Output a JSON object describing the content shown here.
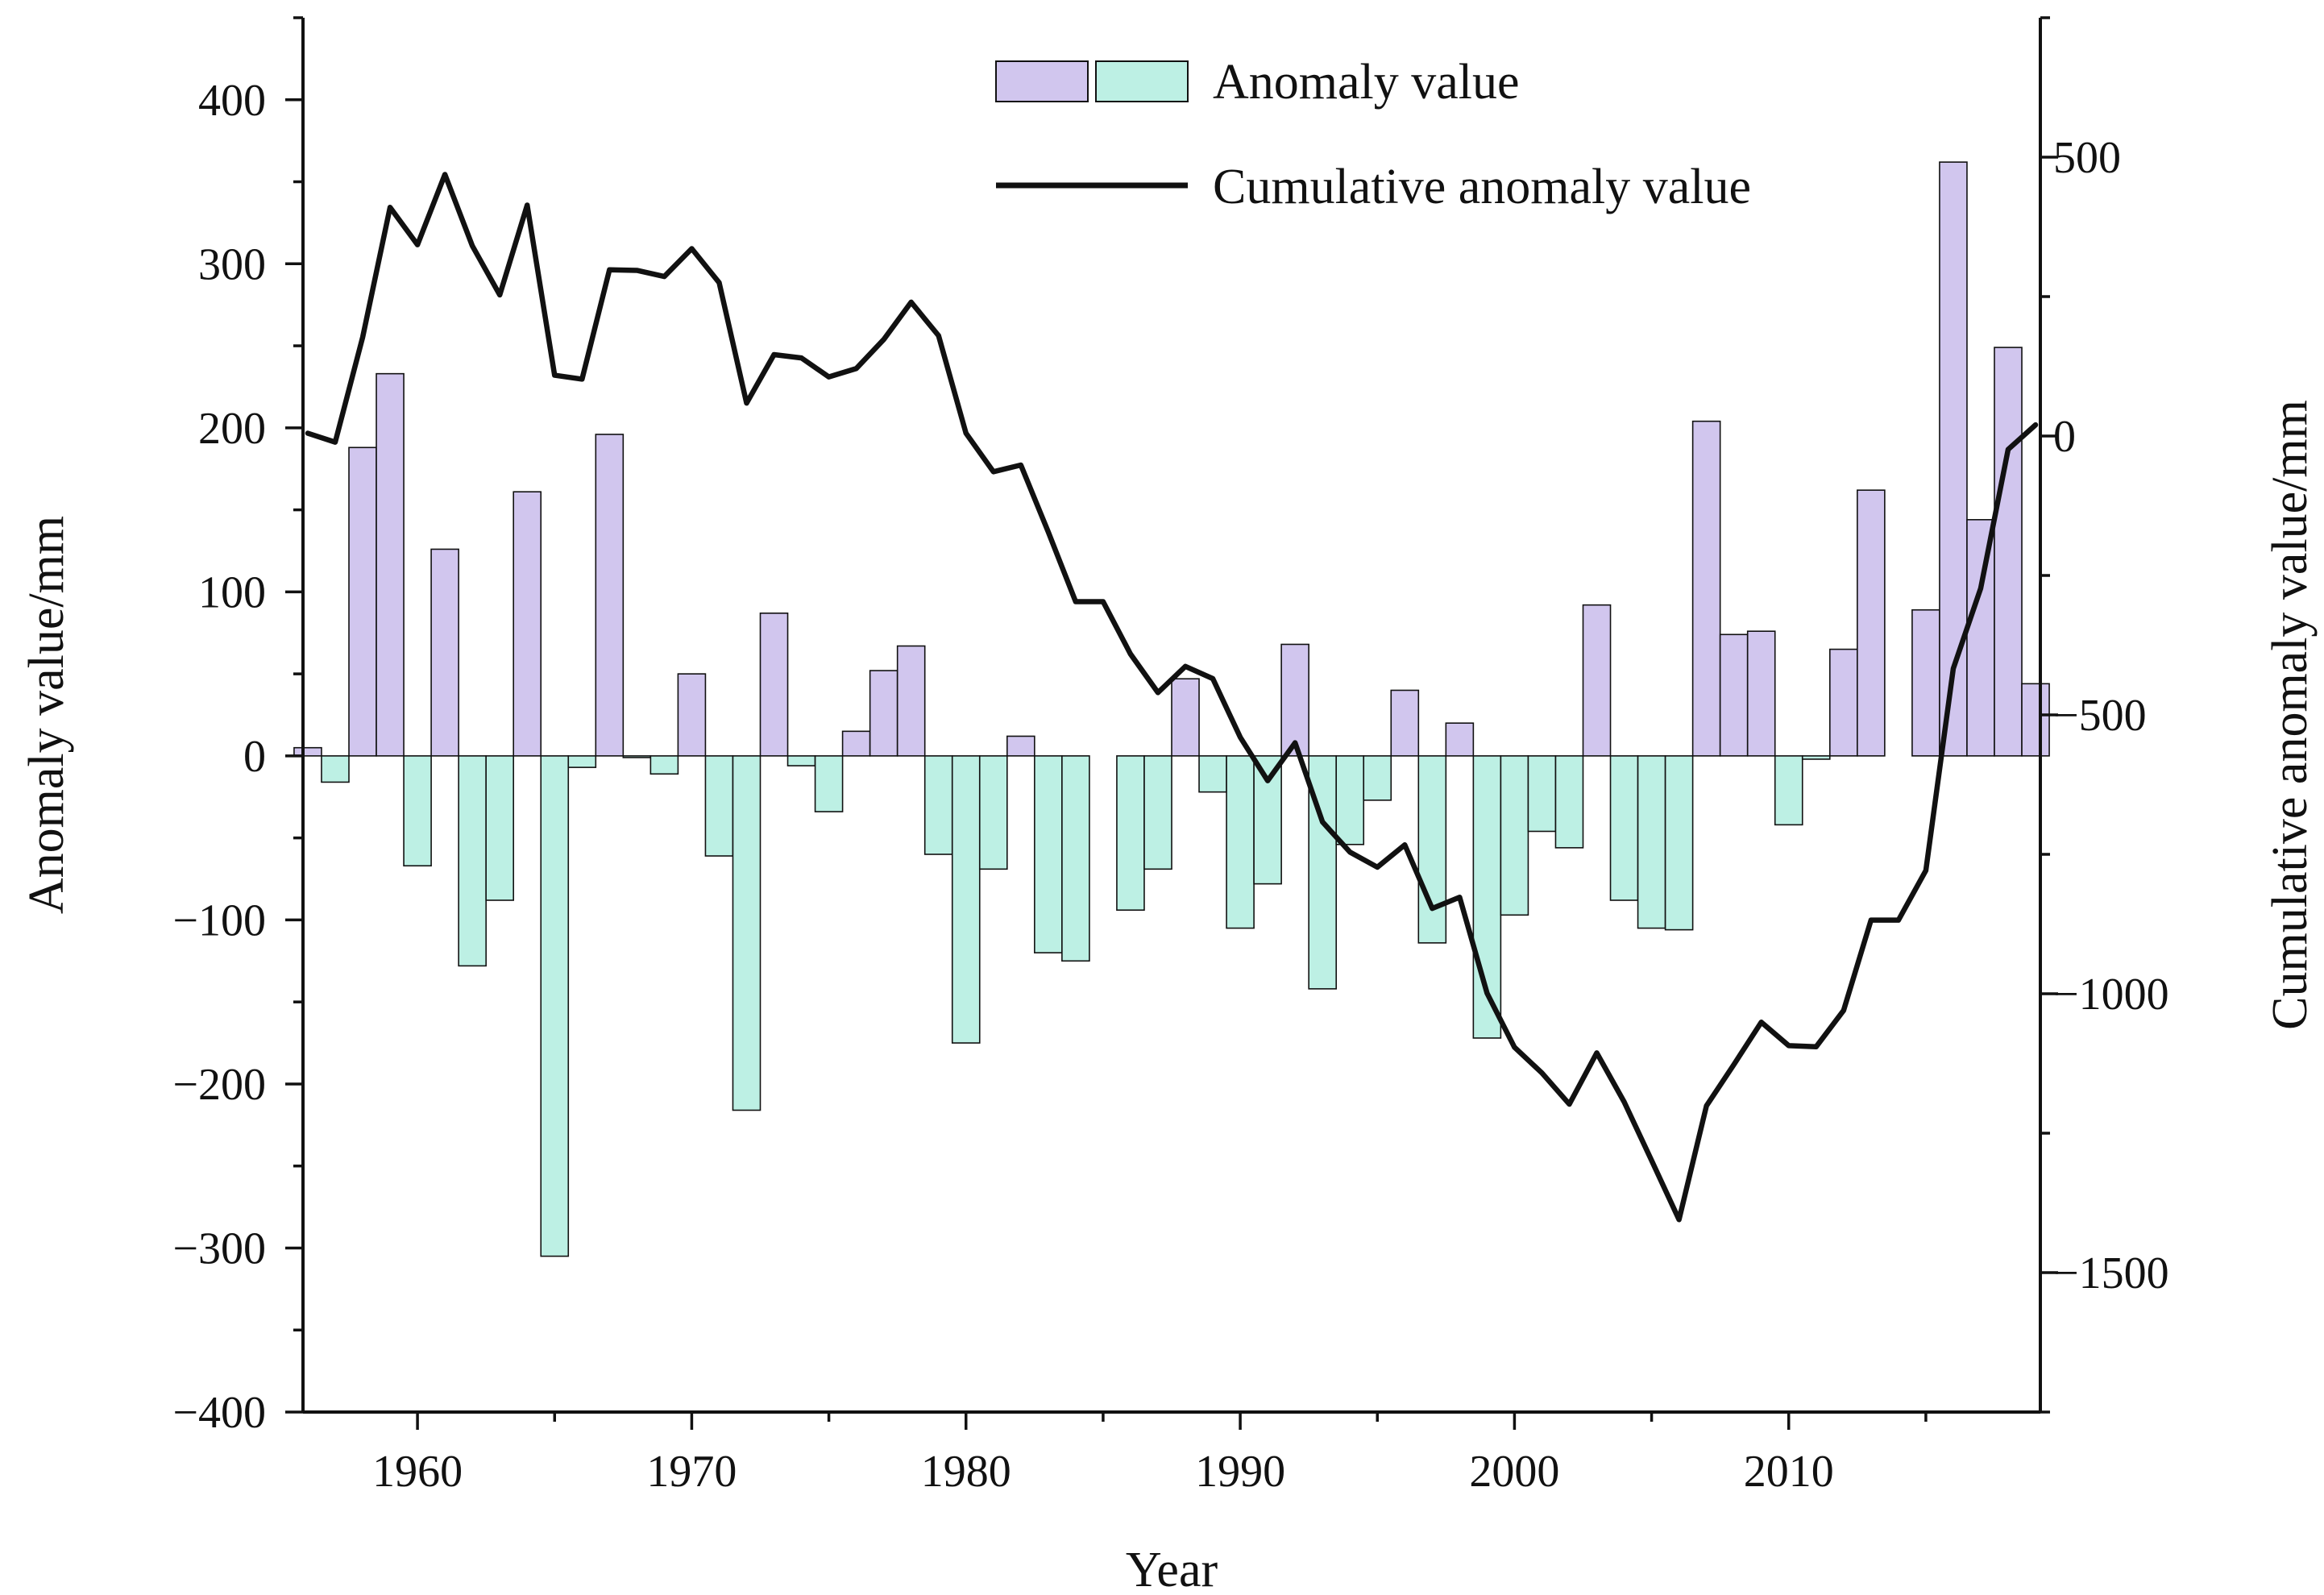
{
  "chart_data": {
    "type": "bar",
    "title": "",
    "xlabel": "Year",
    "ylabel": "Anomaly value/mm",
    "y2label": "Cumulative anomaly value/mm",
    "xlim": [
      1956,
      2019
    ],
    "ylim": [
      -400,
      450
    ],
    "y2lim": [
      -1750,
      750
    ],
    "x_ticks": [
      1960,
      1970,
      1980,
      1990,
      2000,
      2010
    ],
    "y_ticks": [
      -400,
      -300,
      -200,
      -100,
      0,
      100,
      200,
      300,
      400
    ],
    "y_tick_labels": [
      "−400",
      "−300",
      "−200",
      "−100",
      "0",
      "100",
      "200",
      "300",
      "400"
    ],
    "y2_ticks": [
      -1500,
      -1000,
      -500,
      0,
      500
    ],
    "y2_tick_labels": [
      "−1500",
      "−1000",
      "−500",
      "0",
      "500"
    ],
    "grid": false,
    "legend_position": "top-right",
    "legend": [
      "Anomaly value",
      "Cumulative anomaly value"
    ],
    "colors": {
      "positive": "#d1c6ee",
      "negative": "#bdf0e4",
      "line": "#111111",
      "axis": "#111111"
    },
    "series": [
      {
        "name": "Anomaly value",
        "type": "bar",
        "x": [
          1956,
          1957,
          1958,
          1959,
          1960,
          1961,
          1962,
          1963,
          1964,
          1965,
          1966,
          1967,
          1968,
          1969,
          1970,
          1971,
          1972,
          1973,
          1974,
          1975,
          1976,
          1977,
          1978,
          1979,
          1980,
          1981,
          1982,
          1983,
          1984,
          1985,
          1986,
          1987,
          1988,
          1989,
          1990,
          1991,
          1992,
          1993,
          1994,
          1995,
          1996,
          1997,
          1998,
          1999,
          2000,
          2001,
          2002,
          2003,
          2004,
          2005,
          2006,
          2007,
          2008,
          2009,
          2010,
          2011,
          2012,
          2013,
          2014,
          2015,
          2016,
          2017,
          2018,
          2019
        ],
        "values": [
          5,
          -16,
          188,
          233,
          -67,
          126,
          -128,
          -88,
          161,
          -305,
          -7,
          196,
          -1,
          -11,
          50,
          -61,
          -216,
          87,
          -6,
          -34,
          15,
          52,
          67,
          -60,
          -175,
          -69,
          12,
          -120,
          -125,
          0,
          -94,
          -69,
          47,
          -22,
          -105,
          -78,
          68,
          -142,
          -54,
          -27,
          40,
          -114,
          20,
          -172,
          -97,
          -46,
          -56,
          92,
          -88,
          -105,
          -106,
          204,
          74,
          76,
          -42,
          -2,
          65,
          162,
          0,
          89,
          362,
          144,
          249,
          44
        ]
      },
      {
        "name": "Cumulative anomaly value",
        "type": "line",
        "x": [
          1956,
          1957,
          1958,
          1959,
          1960,
          1961,
          1962,
          1963,
          1964,
          1965,
          1966,
          1967,
          1968,
          1969,
          1970,
          1971,
          1972,
          1973,
          1974,
          1975,
          1976,
          1977,
          1978,
          1979,
          1980,
          1981,
          1982,
          1983,
          1984,
          1985,
          1986,
          1987,
          1988,
          1989,
          1990,
          1991,
          1992,
          1993,
          1994,
          1995,
          1996,
          1997,
          1998,
          1999,
          2000,
          2001,
          2002,
          2003,
          2004,
          2005,
          2006,
          2007,
          2008,
          2009,
          2010,
          2011,
          2012,
          2013,
          2014,
          2015,
          2016,
          2017,
          2018,
          2019
        ],
        "values": [
          5,
          -11,
          177,
          410,
          343,
          469,
          341,
          253,
          414,
          109,
          102,
          298,
          297,
          286,
          336,
          275,
          59,
          146,
          140,
          106,
          121,
          173,
          240,
          180,
          5,
          -64,
          -52,
          -172,
          -297,
          -297,
          -391,
          -460,
          -413,
          -435,
          -540,
          -618,
          -550,
          -692,
          -746,
          -773,
          -733,
          -847,
          -827,
          -999,
          -1096,
          -1142,
          -1198,
          -1106,
          -1194,
          -1299,
          -1405,
          -1201,
          -1127,
          -1051,
          -1093,
          -1095,
          -1030,
          -868,
          -868,
          -779,
          -417,
          -273,
          -24,
          20
        ]
      }
    ]
  }
}
